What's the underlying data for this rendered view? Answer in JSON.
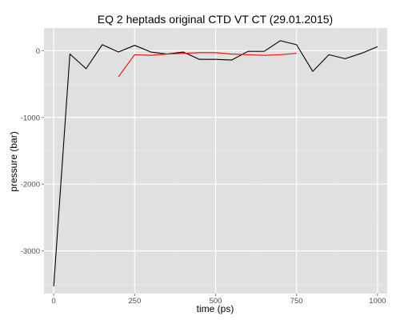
{
  "chart_data": {
    "type": "line",
    "title": "EQ 2 heptads original CTD VT CT (29.01.2015)",
    "xlabel": "time (ps)",
    "ylabel": "pressure (bar)",
    "xlim": [
      -30,
      1030
    ],
    "ylim": [
      -3640,
      340
    ],
    "x_ticks": [
      0,
      250,
      500,
      750,
      1000
    ],
    "x_tick_labels": [
      "0",
      "250",
      "500",
      "750",
      "1000"
    ],
    "y_ticks": [
      0,
      -1000,
      -2000,
      -3000
    ],
    "y_tick_labels": [
      "0",
      "-1000",
      "-2000",
      "-3000"
    ],
    "grid": true,
    "background": "#e0e0e0",
    "legend": "none",
    "series": [
      {
        "color": "#000000",
        "points": [
          [
            0,
            -3530
          ],
          [
            50,
            -50
          ],
          [
            100,
            -270
          ],
          [
            150,
            90
          ],
          [
            200,
            -20
          ],
          [
            250,
            80
          ],
          [
            300,
            -20
          ],
          [
            350,
            -50
          ],
          [
            400,
            -20
          ],
          [
            450,
            -130
          ],
          [
            500,
            -130
          ],
          [
            550,
            -140
          ],
          [
            600,
            -10
          ],
          [
            650,
            -10
          ],
          [
            700,
            150
          ],
          [
            750,
            90
          ],
          [
            800,
            -310
          ],
          [
            850,
            -60
          ],
          [
            900,
            -120
          ],
          [
            950,
            -40
          ],
          [
            1000,
            60
          ]
        ]
      },
      {
        "color": "#ff0000",
        "points": [
          [
            200,
            -390
          ],
          [
            250,
            -60
          ],
          [
            300,
            -70
          ],
          [
            350,
            -50
          ],
          [
            400,
            -40
          ],
          [
            450,
            -30
          ],
          [
            500,
            -30
          ],
          [
            550,
            -50
          ],
          [
            600,
            -60
          ],
          [
            650,
            -70
          ],
          [
            700,
            -60
          ],
          [
            750,
            -40
          ]
        ]
      }
    ]
  }
}
